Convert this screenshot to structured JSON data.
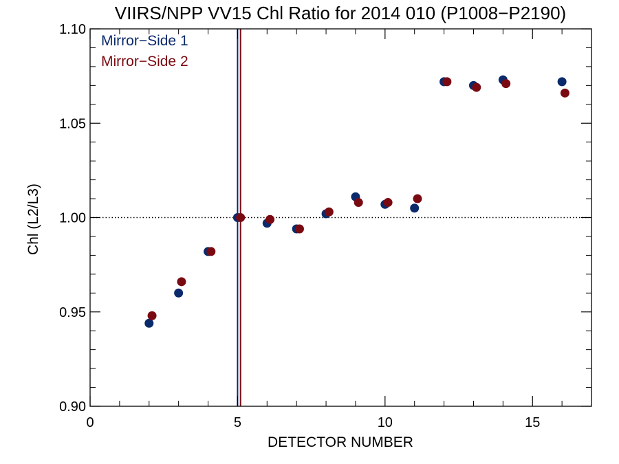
{
  "chart_data": {
    "type": "scatter",
    "title": "VIIRS/NPP VV15 Chl Ratio for 2014 010 (P1008−P2190)",
    "xlabel": "DETECTOR NUMBER",
    "ylabel": "Chl (L2/L3)",
    "xlim": [
      0,
      17
    ],
    "ylim": [
      0.9,
      1.1
    ],
    "x_ticks": [
      0,
      5,
      10,
      15
    ],
    "x_tick_labels": [
      "0",
      "5",
      "10",
      "15"
    ],
    "y_ticks": [
      0.9,
      0.95,
      1.0,
      1.05,
      1.1
    ],
    "y_tick_labels": [
      "0.90",
      "0.95",
      "1.00",
      "1.05",
      "1.10"
    ],
    "reference_line": {
      "y": 1.0,
      "style": "dotted",
      "color": "#000000"
    },
    "vertical_lines": [
      {
        "x": 5.0,
        "color": "#0b2a6b"
      },
      {
        "x": 5.1,
        "color": "#7a0a12"
      }
    ],
    "legend_position": "top-left",
    "grid": false,
    "series": [
      {
        "name": "Mirror−Side 1",
        "color": "#0b2a6b",
        "x": [
          2,
          3,
          4,
          5,
          6,
          7,
          8,
          9,
          10,
          11,
          12,
          13,
          14,
          16
        ],
        "y": [
          0.944,
          0.96,
          0.982,
          1.0,
          0.997,
          0.994,
          1.002,
          1.011,
          1.007,
          1.005,
          1.072,
          1.07,
          1.073,
          1.072
        ]
      },
      {
        "name": "Mirror−Side 2",
        "color": "#7a0a12",
        "x": [
          2.1,
          3.1,
          4.1,
          5.1,
          6.1,
          7.1,
          8.1,
          9.1,
          10.1,
          11.1,
          12.1,
          13.1,
          14.1,
          16.1
        ],
        "y": [
          0.948,
          0.966,
          0.982,
          1.0,
          0.999,
          0.994,
          1.003,
          1.008,
          1.008,
          1.01,
          1.072,
          1.069,
          1.071,
          1.066
        ]
      }
    ]
  }
}
